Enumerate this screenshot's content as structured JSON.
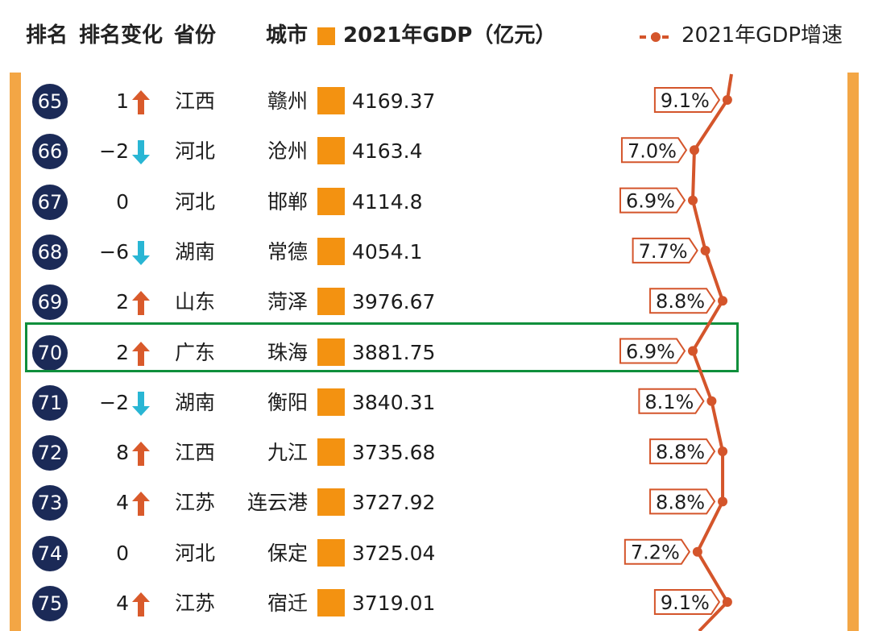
{
  "header": {
    "rank": "排名",
    "rank_change": "排名变化",
    "province": "省份",
    "city": "城市",
    "gdp_legend": "2021年GDP（亿元）",
    "growth_legend": "2021年GDP增速"
  },
  "colors": {
    "navy_badge": "#1b2a57",
    "gdp_orange": "#f39211",
    "growth_line": "#d4552b",
    "up_arrow": "#d95a2b",
    "down_arrow": "#29b6d4",
    "highlight": "#0f8f3c",
    "side_bar": "#f3a645"
  },
  "chart_data": {
    "type": "table",
    "columns": [
      "排名",
      "排名变化",
      "省份",
      "城市",
      "2021年GDP（亿元）",
      "2021年GDP增速"
    ],
    "rows": [
      {
        "rank": "65",
        "change": "1",
        "dir": "up",
        "province": "江西",
        "city": "赣州",
        "gdp": "4169.37",
        "growth": 9.1,
        "growth_label": "9.1%"
      },
      {
        "rank": "66",
        "change": "−2",
        "dir": "down",
        "province": "河北",
        "city": "沧州",
        "gdp": "4163.4",
        "growth": 7.0,
        "growth_label": "7.0%"
      },
      {
        "rank": "67",
        "change": "0",
        "dir": "none",
        "province": "河北",
        "city": "邯郸",
        "gdp": "4114.8",
        "growth": 6.9,
        "growth_label": "6.9%"
      },
      {
        "rank": "68",
        "change": "−6",
        "dir": "down",
        "province": "湖南",
        "city": "常德",
        "gdp": "4054.1",
        "growth": 7.7,
        "growth_label": "7.7%"
      },
      {
        "rank": "69",
        "change": "2",
        "dir": "up",
        "province": "山东",
        "city": "菏泽",
        "gdp": "3976.67",
        "growth": 8.8,
        "growth_label": "8.8%"
      },
      {
        "rank": "70",
        "change": "2",
        "dir": "up",
        "province": "广东",
        "city": "珠海",
        "gdp": "3881.75",
        "growth": 6.9,
        "growth_label": "6.9%"
      },
      {
        "rank": "71",
        "change": "−2",
        "dir": "down",
        "province": "湖南",
        "city": "衡阳",
        "gdp": "3840.31",
        "growth": 8.1,
        "growth_label": "8.1%"
      },
      {
        "rank": "72",
        "change": "8",
        "dir": "up",
        "province": "江西",
        "city": "九江",
        "gdp": "3735.68",
        "growth": 8.8,
        "growth_label": "8.8%"
      },
      {
        "rank": "73",
        "change": "4",
        "dir": "up",
        "province": "江苏",
        "city": "连云港",
        "gdp": "3727.92",
        "growth": 8.8,
        "growth_label": "8.8%"
      },
      {
        "rank": "74",
        "change": "0",
        "dir": "none",
        "province": "河北",
        "city": "保定",
        "gdp": "3725.04",
        "growth": 7.2,
        "growth_label": "7.2%"
      },
      {
        "rank": "75",
        "change": "4",
        "dir": "up",
        "province": "江苏",
        "city": "宿迁",
        "gdp": "3719.01",
        "growth": 9.1,
        "growth_label": "9.1%"
      }
    ],
    "highlighted_rank": "70",
    "legend_placement": "top-right"
  }
}
